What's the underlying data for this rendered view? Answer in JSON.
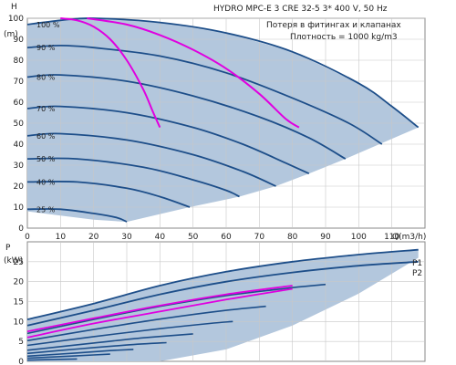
{
  "chart_data": [
    {
      "type": "line",
      "title": "HYDRO MPC-E 3 CRE 32-5     3* 400 V, 50 Hz",
      "info_lines": [
        "Потеря в фитингах и клапанах",
        "Плотность = 1000 kg/m3"
      ],
      "ylabel": "H",
      "yunit": "(m)",
      "xlabel": "Q(m3/h)",
      "xlim": [
        0,
        120
      ],
      "ylim": [
        0,
        100
      ],
      "xticks": [
        0,
        10,
        20,
        30,
        40,
        50,
        60,
        70,
        80,
        90,
        100,
        110
      ],
      "yticks": [
        0,
        10,
        20,
        30,
        40,
        50,
        60,
        70,
        80,
        90,
        100
      ],
      "grid": true,
      "colors": {
        "speed_curve": "#1d4e89",
        "system_curve": "#e000e0",
        "area_fill": "#b3c7dd",
        "grid": "#c8c8c8"
      },
      "speed_curves": [
        {
          "label": "100 %",
          "points": [
            [
              0,
              97
            ],
            [
              10,
              99
            ],
            [
              20,
              100
            ],
            [
              40,
              98
            ],
            [
              60,
              93
            ],
            [
              80,
              84
            ],
            [
              100,
              69
            ],
            [
              110,
              58
            ],
            [
              118,
              48
            ]
          ]
        },
        {
          "label": "90 %",
          "points": [
            [
              0,
              86
            ],
            [
              10,
              87
            ],
            [
              20,
              86
            ],
            [
              40,
              82
            ],
            [
              60,
              74
            ],
            [
              80,
              62
            ],
            [
              97,
              50
            ],
            [
              107,
              40
            ]
          ]
        },
        {
          "label": "80 %",
          "points": [
            [
              0,
              72
            ],
            [
              10,
              73
            ],
            [
              30,
              70
            ],
            [
              50,
              63
            ],
            [
              70,
              53
            ],
            [
              85,
              43
            ],
            [
              96,
              33
            ]
          ]
        },
        {
          "label": "70 %",
          "points": [
            [
              0,
              57
            ],
            [
              10,
              58
            ],
            [
              30,
              55
            ],
            [
              50,
              48
            ],
            [
              65,
              40
            ],
            [
              78,
              31
            ],
            [
              85,
              26
            ]
          ]
        },
        {
          "label": "60 %",
          "points": [
            [
              0,
              44
            ],
            [
              10,
              45
            ],
            [
              30,
              42
            ],
            [
              50,
              35
            ],
            [
              65,
              27
            ],
            [
              75,
              20
            ]
          ]
        },
        {
          "label": "50 %",
          "points": [
            [
              0,
              33
            ],
            [
              15,
              33
            ],
            [
              35,
              29
            ],
            [
              50,
              23
            ],
            [
              60,
              18
            ],
            [
              64,
              15
            ]
          ]
        },
        {
          "label": "40 %",
          "points": [
            [
              0,
              22
            ],
            [
              15,
              22
            ],
            [
              30,
              19
            ],
            [
              40,
              15
            ],
            [
              49,
              10
            ]
          ]
        },
        {
          "label": "25 %",
          "points": [
            [
              0,
              9
            ],
            [
              10,
              9
            ],
            [
              20,
              7
            ],
            [
              27,
              5
            ],
            [
              30,
              3
            ]
          ]
        }
      ],
      "system_curves": [
        {
          "points": [
            [
              10,
              100
            ],
            [
              15,
              99
            ],
            [
              20,
              96
            ],
            [
              25,
              90
            ],
            [
              30,
              80
            ],
            [
              35,
              66
            ],
            [
              38,
              55
            ],
            [
              40,
              48
            ]
          ]
        },
        {
          "points": [
            [
              18,
              100
            ],
            [
              30,
              97
            ],
            [
              40,
              92
            ],
            [
              50,
              85
            ],
            [
              60,
              76
            ],
            [
              70,
              64
            ],
            [
              78,
              52
            ],
            [
              82,
              48
            ]
          ]
        }
      ],
      "area_boundary": [
        [
          0,
          97
        ],
        [
          10,
          99
        ],
        [
          20,
          100
        ],
        [
          40,
          98
        ],
        [
          60,
          93
        ],
        [
          80,
          84
        ],
        [
          100,
          69
        ],
        [
          110,
          58
        ],
        [
          118,
          48
        ],
        [
          96,
          33
        ],
        [
          85,
          26
        ],
        [
          75,
          20
        ],
        [
          64,
          15
        ],
        [
          49,
          10
        ],
        [
          30,
          3
        ],
        [
          20,
          4
        ],
        [
          10,
          6
        ],
        [
          0,
          8
        ]
      ]
    },
    {
      "type": "line",
      "ylabel": "P",
      "yunit": "(kW)",
      "xlim": [
        0,
        120
      ],
      "ylim": [
        0,
        30
      ],
      "yticks": [
        0,
        5,
        10,
        15,
        20,
        25
      ],
      "grid": true,
      "colors": {
        "speed_curve": "#1d4e89",
        "system_curve": "#e000e0",
        "area_fill": "#b3c7dd",
        "grid": "#c8c8c8"
      },
      "series_labels": [
        "P1",
        "P2"
      ],
      "series": [
        {
          "name": "P1",
          "points": [
            [
              0,
              10.5
            ],
            [
              20,
              14.5
            ],
            [
              40,
              19
            ],
            [
              60,
              22.5
            ],
            [
              80,
              25
            ],
            [
              100,
              26.8
            ],
            [
              118,
              28
            ]
          ]
        },
        {
          "name": "P2",
          "points": [
            [
              0,
              9
            ],
            [
              20,
              12.8
            ],
            [
              40,
              16.8
            ],
            [
              60,
              20
            ],
            [
              80,
              22.3
            ],
            [
              100,
              24
            ],
            [
              118,
              25
            ]
          ]
        }
      ],
      "speed_curves": [
        {
          "points": [
            [
              0,
              7
            ],
            [
              20,
              10.5
            ],
            [
              40,
              13.8
            ],
            [
              60,
              16.5
            ],
            [
              80,
              18.5
            ],
            [
              90,
              19.3
            ]
          ]
        },
        {
          "points": [
            [
              0,
              5.2
            ],
            [
              20,
              8
            ],
            [
              40,
              10.6
            ],
            [
              60,
              12.8
            ],
            [
              72,
              13.8
            ]
          ]
        },
        {
          "points": [
            [
              0,
              4
            ],
            [
              20,
              6.2
            ],
            [
              40,
              8.2
            ],
            [
              55,
              9.5
            ],
            [
              62,
              10
            ]
          ]
        },
        {
          "points": [
            [
              0,
              2.8
            ],
            [
              20,
              4.6
            ],
            [
              35,
              5.9
            ],
            [
              50,
              6.9
            ]
          ]
        },
        {
          "points": [
            [
              0,
              2
            ],
            [
              15,
              3.1
            ],
            [
              30,
              4.1
            ],
            [
              42,
              4.7
            ]
          ]
        },
        {
          "points": [
            [
              0,
              1.3
            ],
            [
              15,
              2.1
            ],
            [
              25,
              2.7
            ],
            [
              32,
              3
            ]
          ]
        },
        {
          "points": [
            [
              0,
              0.8
            ],
            [
              10,
              1.2
            ],
            [
              20,
              1.6
            ],
            [
              25,
              1.8
            ]
          ]
        },
        {
          "points": [
            [
              0,
              0.3
            ],
            [
              10,
              0.5
            ],
            [
              15,
              0.6
            ]
          ]
        }
      ],
      "system_curves": [
        {
          "points": [
            [
              0,
              6
            ],
            [
              20,
              9.5
            ],
            [
              40,
              12.5
            ],
            [
              60,
              15.5
            ],
            [
              80,
              18.2
            ]
          ]
        },
        {
          "points": [
            [
              0,
              7.5
            ],
            [
              20,
              10.8
            ],
            [
              40,
              14
            ],
            [
              60,
              16.8
            ],
            [
              80,
              19
            ]
          ]
        }
      ],
      "area_boundary": [
        [
          0,
          10.5
        ],
        [
          20,
          14.5
        ],
        [
          40,
          19
        ],
        [
          60,
          22.5
        ],
        [
          80,
          25
        ],
        [
          100,
          26.8
        ],
        [
          118,
          28
        ],
        [
          118,
          26
        ],
        [
          100,
          17
        ],
        [
          80,
          9
        ],
        [
          60,
          3
        ],
        [
          40,
          0
        ],
        [
          0,
          0
        ]
      ]
    }
  ]
}
